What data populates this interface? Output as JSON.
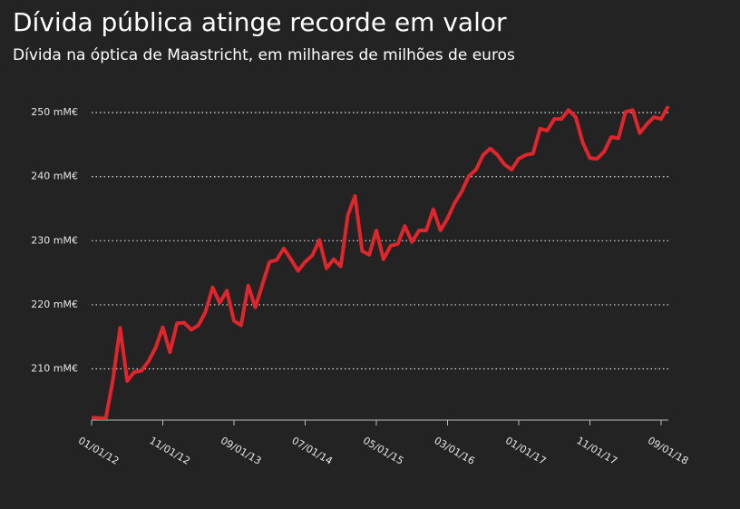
{
  "chart_data": {
    "type": "line",
    "title": "Dívida pública atinge recorde em valor",
    "subtitle": "Dívida na óptica de Maastricht, em milhares de milhões de euros",
    "categories": [
      "01/01/12",
      null,
      null,
      null,
      null,
      null,
      null,
      null,
      null,
      null,
      "11/01/12",
      null,
      null,
      null,
      null,
      null,
      null,
      null,
      null,
      null,
      "09/01/13",
      null,
      null,
      null,
      null,
      null,
      null,
      null,
      null,
      null,
      "07/01/14",
      null,
      null,
      null,
      null,
      null,
      null,
      null,
      null,
      null,
      "05/01/15",
      null,
      null,
      null,
      null,
      null,
      null,
      null,
      null,
      null,
      "03/01/16",
      null,
      null,
      null,
      null,
      null,
      null,
      null,
      null,
      null,
      "01/01/17",
      null,
      null,
      null,
      null,
      null,
      null,
      null,
      null,
      null,
      "11/01/17",
      null,
      null,
      null,
      null,
      null,
      null,
      null,
      null,
      null,
      "09/01/18",
      null
    ],
    "series": [
      {
        "color": "#e0262c",
        "values": [
          202.4,
          202.3,
          202.3,
          208.3,
          216.4,
          208.1,
          209.5,
          209.7,
          211.2,
          213.3,
          216.5,
          212.6,
          217.1,
          217.2,
          216.1,
          216.8,
          218.9,
          222.7,
          220.3,
          222.2,
          217.5,
          216.8,
          223.0,
          219.6,
          223.2,
          226.7,
          227.0,
          228.8,
          227.1,
          225.3,
          226.7,
          227.7,
          230.1,
          225.7,
          227.1,
          226.0,
          234.0,
          237.0,
          228.4,
          227.8,
          231.6,
          227.1,
          229.2,
          229.5,
          232.3,
          229.8,
          231.6,
          231.6,
          234.9,
          231.6,
          233.5,
          235.9,
          237.7,
          240.1,
          241.1,
          243.4,
          244.4,
          243.4,
          241.9,
          241.1,
          242.8,
          243.4,
          243.6,
          247.5,
          247.2,
          249.0,
          249.0,
          250.4,
          249.3,
          245.3,
          242.9,
          242.8,
          243.9,
          246.2,
          246.0,
          250.1,
          250.4,
          246.8,
          248.2,
          249.3,
          249.0,
          251.0
        ]
      }
    ],
    "ylim": [
      202,
      252
    ],
    "yticks": [
      {
        "value": 210,
        "label": "210 mM€"
      },
      {
        "value": 220,
        "label": "220 mM€"
      },
      {
        "value": 230,
        "label": "230 mM€"
      },
      {
        "value": 240,
        "label": "240 mM€"
      },
      {
        "value": 250,
        "label": "250 mM€"
      }
    ],
    "grid": true
  }
}
